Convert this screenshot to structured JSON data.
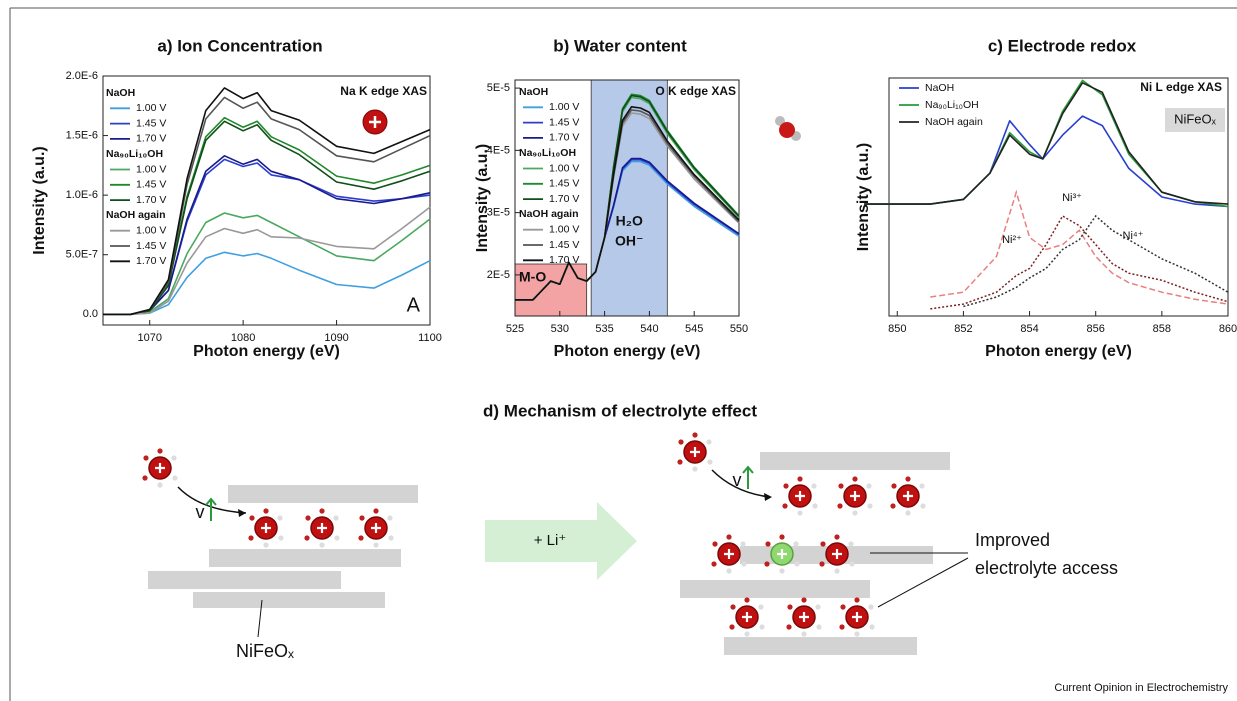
{
  "chart_data": [
    {
      "type": "line",
      "title": "a) Ion Concentration",
      "xlabel": "Photon energy (eV)",
      "ylabel": "Intensity (a.u.)",
      "x": [
        1065,
        1068,
        1070,
        1072,
        1074,
        1076,
        1078,
        1080,
        1081.5,
        1083,
        1086,
        1090,
        1094,
        1097,
        1100
      ],
      "xlim": [
        1065,
        1100
      ],
      "xticks": [
        1070,
        1080,
        1090,
        1100
      ],
      "ylim": [
        -9e-08,
        2e-06
      ],
      "yticks": [
        {
          "value": 0,
          "label": "0.0"
        },
        {
          "value": 5e-07,
          "label": "5.0E-7"
        },
        {
          "value": 1e-06,
          "label": "1.0E-6"
        },
        {
          "value": 1.5e-06,
          "label": "1.5E-6"
        },
        {
          "value": 2e-06,
          "label": "2.0E-6"
        }
      ],
      "legend": "upper left",
      "legend_groups": [
        "NaOH",
        "Na₉₀Li₁₀OH",
        "NaOH again"
      ],
      "annotations": [
        "Na K edge XAS",
        "A"
      ],
      "series": [
        {
          "name": "1.00 V",
          "group": 0,
          "color": "#3fa0e0",
          "values": [
            0,
            0,
            1e-08,
            8e-08,
            3.1e-07,
            4.7e-07,
            5.2e-07,
            4.9e-07,
            5.1e-07,
            4.7e-07,
            3.7e-07,
            2.5e-07,
            2.2e-07,
            3.3e-07,
            4.5e-07
          ]
        },
        {
          "name": "1.45 V",
          "group": 0,
          "color": "#2b3fcf",
          "values": [
            0,
            0,
            3e-08,
            2e-07,
            7.8e-07,
            1.17e-06,
            1.3e-06,
            1.24e-06,
            1.27e-06,
            1.17e-06,
            1.13e-06,
            9.9e-07,
            9.5e-07,
            9.7e-07,
            1e-06
          ]
        },
        {
          "name": "1.70 V",
          "group": 0,
          "color": "#1a1a8f",
          "values": [
            0,
            0,
            3e-08,
            2e-07,
            8e-07,
            1.2e-06,
            1.33e-06,
            1.26e-06,
            1.3e-06,
            1.2e-06,
            1.13e-06,
            9.7e-07,
            9.3e-07,
            9.7e-07,
            1.02e-06
          ]
        },
        {
          "name": "1.00 V",
          "group": 1,
          "color": "#4aa860",
          "values": [
            0,
            0,
            2e-08,
            1.3e-07,
            5.1e-07,
            7.7e-07,
            8.5e-07,
            8.1e-07,
            8.3e-07,
            7.7e-07,
            6.5e-07,
            4.9e-07,
            4.5e-07,
            6.2e-07,
            8e-07
          ]
        },
        {
          "name": "1.45 V",
          "group": 1,
          "color": "#1f8a2a",
          "values": [
            0,
            0,
            3e-08,
            2.5e-07,
            9.9e-07,
            1.49e-06,
            1.65e-06,
            1.57e-06,
            1.62e-06,
            1.49e-06,
            1.38e-06,
            1.16e-06,
            1.1e-06,
            1.17e-06,
            1.25e-06
          ]
        },
        {
          "name": "1.70 V",
          "group": 1,
          "color": "#0f4f1a",
          "values": [
            0,
            0,
            3e-08,
            2.4e-07,
            9.7e-07,
            1.46e-06,
            1.62e-06,
            1.54e-06,
            1.59e-06,
            1.46e-06,
            1.34e-06,
            1.11e-06,
            1.05e-06,
            1.12e-06,
            1.2e-06
          ]
        },
        {
          "name": "1.00 V",
          "group": 2,
          "color": "#999999",
          "values": [
            0,
            0,
            1e-08,
            1.1e-07,
            4.3e-07,
            6.5e-07,
            7.2e-07,
            6.8e-07,
            7.1e-07,
            6.5e-07,
            6.4e-07,
            5.7e-07,
            5.5e-07,
            7.2e-07,
            9e-07
          ]
        },
        {
          "name": "1.45 V",
          "group": 2,
          "color": "#555555",
          "values": [
            0,
            0,
            4e-08,
            2.7e-07,
            1.09e-06,
            1.64e-06,
            1.82e-06,
            1.73e-06,
            1.78e-06,
            1.64e-06,
            1.55e-06,
            1.33e-06,
            1.28e-06,
            1.39e-06,
            1.5e-06
          ]
        },
        {
          "name": "1.70 V",
          "group": 2,
          "color": "#111111",
          "values": [
            0,
            0,
            4e-08,
            2.9e-07,
            1.14e-06,
            1.71e-06,
            1.9e-06,
            1.81e-06,
            1.86e-06,
            1.71e-06,
            1.63e-06,
            1.41e-06,
            1.35e-06,
            1.45e-06,
            1.55e-06
          ]
        }
      ]
    },
    {
      "type": "line",
      "title": "b) Water content",
      "xlabel": "Photon energy (eV)",
      "ylabel": "Intensity (a.u.)",
      "x": [
        525,
        527,
        528,
        529,
        530,
        531,
        532,
        533,
        534,
        535,
        536,
        537,
        538,
        539,
        540,
        542,
        545,
        550
      ],
      "xlim": [
        525,
        550
      ],
      "xticks": [
        525,
        530,
        535,
        540,
        545,
        550
      ],
      "ylim": [
        1.34e-05,
        5.13e-05
      ],
      "yticks": [
        {
          "value": 2e-05,
          "label": "2E-5"
        },
        {
          "value": 3e-05,
          "label": "3E-5"
        },
        {
          "value": 4e-05,
          "label": "4E-5"
        },
        {
          "value": 5e-05,
          "label": "5E-5"
        }
      ],
      "legend": "upper left",
      "legend_groups": [
        "NaOH",
        "Na₉₀Li₁₀OH",
        "NaOH again"
      ],
      "annotations": [
        "O K edge XAS"
      ],
      "regions": [
        {
          "label": [
            "M-O"
          ],
          "xlim": [
            525,
            533
          ],
          "color": "#f3a3a3"
        },
        {
          "label": [
            "H₂O",
            "OH⁻"
          ],
          "xlim": [
            533.5,
            542
          ],
          "color": "#b7c9e8"
        }
      ],
      "series": [
        {
          "name": "1.00 V",
          "group": 0,
          "color": "#3fa0e0",
          "values": [
            1.6e-05,
            1.6e-05,
            1.75e-05,
            1.9e-05,
            1.85e-05,
            2.2e-05,
            1.95e-05,
            1.9e-05,
            2.05e-05,
            2.6e-05,
            3.09e-05,
            3.67e-05,
            3.82e-05,
            3.82e-05,
            3.76e-05,
            3.46e-05,
            3.1e-05,
            2.62e-05
          ]
        },
        {
          "name": "1.45 V",
          "group": 0,
          "color": "#2b3fcf",
          "values": [
            1.6e-05,
            1.6e-05,
            1.75e-05,
            1.9e-05,
            1.85e-05,
            2.2e-05,
            1.95e-05,
            1.9e-05,
            2.05e-05,
            2.6e-05,
            3.11e-05,
            3.7e-05,
            3.85e-05,
            3.85e-05,
            3.79e-05,
            3.49e-05,
            3.13e-05,
            2.65e-05
          ]
        },
        {
          "name": "1.70 V",
          "group": 0,
          "color": "#1a1a8f",
          "values": [
            1.6e-05,
            1.6e-05,
            1.75e-05,
            1.9e-05,
            1.85e-05,
            2.2e-05,
            1.95e-05,
            1.9e-05,
            2.05e-05,
            2.6e-05,
            3.12e-05,
            3.72e-05,
            3.87e-05,
            3.87e-05,
            3.81e-05,
            3.51e-05,
            3.15e-05,
            2.66e-05
          ]
        },
        {
          "name": "1.00 V",
          "group": 1,
          "color": "#4aa860",
          "values": [
            1.6e-05,
            1.6e-05,
            1.75e-05,
            1.9e-05,
            1.85e-05,
            2.2e-05,
            1.95e-05,
            1.9e-05,
            2.05e-05,
            2.6e-05,
            3.71e-05,
            4.62e-05,
            4.85e-05,
            4.83e-05,
            4.75e-05,
            4.27e-05,
            3.69e-05,
            2.92e-05
          ]
        },
        {
          "name": "1.45 V",
          "group": 1,
          "color": "#1f8a2a",
          "values": [
            1.6e-05,
            1.6e-05,
            1.75e-05,
            1.9e-05,
            1.85e-05,
            2.2e-05,
            1.95e-05,
            1.9e-05,
            2.05e-05,
            2.6e-05,
            3.74e-05,
            4.67e-05,
            4.9e-05,
            4.88e-05,
            4.8e-05,
            4.32e-05,
            3.73e-05,
            2.95e-05
          ]
        },
        {
          "name": "1.70 V",
          "group": 1,
          "color": "#0f4f1a",
          "values": [
            1.6e-05,
            1.6e-05,
            1.75e-05,
            1.9e-05,
            1.85e-05,
            2.2e-05,
            1.95e-05,
            1.9e-05,
            2.05e-05,
            2.6e-05,
            3.73e-05,
            4.65e-05,
            4.88e-05,
            4.86e-05,
            4.78e-05,
            4.3e-05,
            3.72e-05,
            2.94e-05
          ]
        },
        {
          "name": "1.00 V",
          "group": 2,
          "color": "#999999",
          "values": [
            1.6e-05,
            1.6e-05,
            1.75e-05,
            1.9e-05,
            1.85e-05,
            2.2e-05,
            1.95e-05,
            1.9e-05,
            2.05e-05,
            2.6e-05,
            3.56e-05,
            4.39e-05,
            4.6e-05,
            4.58e-05,
            4.51e-05,
            4.07e-05,
            3.54e-05,
            2.83e-05
          ]
        },
        {
          "name": "1.45 V",
          "group": 2,
          "color": "#555555",
          "values": [
            1.6e-05,
            1.6e-05,
            1.75e-05,
            1.9e-05,
            1.85e-05,
            2.2e-05,
            1.95e-05,
            1.9e-05,
            2.05e-05,
            2.6e-05,
            3.59e-05,
            4.44e-05,
            4.65e-05,
            4.63e-05,
            4.56e-05,
            4.11e-05,
            3.58e-05,
            2.85e-05
          ]
        },
        {
          "name": "1.70 V",
          "group": 2,
          "color": "#111111",
          "values": [
            1.6e-05,
            1.6e-05,
            1.75e-05,
            1.9e-05,
            1.85e-05,
            2.2e-05,
            1.95e-05,
            1.9e-05,
            2.05e-05,
            2.6e-05,
            3.62e-05,
            4.48e-05,
            4.7e-05,
            4.68e-05,
            4.61e-05,
            4.15e-05,
            3.61e-05,
            2.88e-05
          ]
        }
      ]
    },
    {
      "type": "line",
      "title": "c) Electrode redox",
      "xlabel": "Photon energy (eV)",
      "ylabel": "Intensity (a.u.)",
      "x": [
        849,
        851,
        852,
        852.8,
        853.4,
        854,
        854.4,
        855,
        855.6,
        856.2,
        857,
        858,
        859,
        860
      ],
      "xlim": [
        849.75,
        860
      ],
      "xticks": [
        850,
        852,
        854,
        856,
        858,
        860
      ],
      "ylim": [
        0,
        1
      ],
      "legend": "upper left",
      "annotations": [
        "Ni L edge XAS",
        "NiFeOₓ"
      ],
      "series": [
        {
          "name": "NaOH",
          "color": "#2a3fd0",
          "values": [
            0.47,
            0.47,
            0.49,
            0.6,
            0.82,
            0.72,
            0.66,
            0.76,
            0.84,
            0.8,
            0.62,
            0.5,
            0.47,
            0.46
          ]
        },
        {
          "name": "Na₉₀Li₁₀OH",
          "color": "#2a9a3a",
          "values": [
            0.47,
            0.47,
            0.49,
            0.6,
            0.77,
            0.69,
            0.66,
            0.86,
            0.99,
            0.93,
            0.68,
            0.52,
            0.48,
            0.46
          ]
        },
        {
          "name": "NaOH again",
          "color": "#222222",
          "values": [
            0.47,
            0.47,
            0.49,
            0.6,
            0.76,
            0.68,
            0.66,
            0.85,
            0.98,
            0.94,
            0.69,
            0.52,
            0.48,
            0.47
          ]
        }
      ],
      "reference_x": [
        851,
        852,
        853,
        853.6,
        854,
        854.5,
        855,
        855.5,
        856,
        856.5,
        857,
        858,
        859,
        860
      ],
      "references": [
        {
          "name": "Ni²⁺",
          "color": "#e88080",
          "dash": "6 3",
          "values": [
            0.08,
            0.1,
            0.25,
            0.52,
            0.33,
            0.28,
            0.3,
            0.36,
            0.25,
            0.18,
            0.14,
            0.1,
            0.07,
            0.05
          ]
        },
        {
          "name": "Ni³⁺",
          "color": "#7a2020",
          "dash": "2 2",
          "values": [
            0.03,
            0.05,
            0.1,
            0.17,
            0.2,
            0.3,
            0.42,
            0.38,
            0.3,
            0.22,
            0.18,
            0.15,
            0.1,
            0.06
          ]
        },
        {
          "name": "Ni⁴⁺",
          "color": "#333333",
          "dash": "2 2",
          "values": [
            null,
            0.04,
            0.08,
            0.12,
            0.16,
            0.2,
            0.28,
            0.32,
            0.42,
            0.36,
            0.32,
            0.24,
            0.18,
            0.1
          ]
        }
      ]
    }
  ],
  "diagram": {
    "title": "d) Mechanism of electrolyte effect",
    "velocity": "v",
    "arrow_label": "+ Li⁺",
    "material": "NiFeOₓ",
    "callout": [
      "Improved",
      "electrolyte access"
    ]
  },
  "footer": "Current Opinion in Electrochemistry"
}
